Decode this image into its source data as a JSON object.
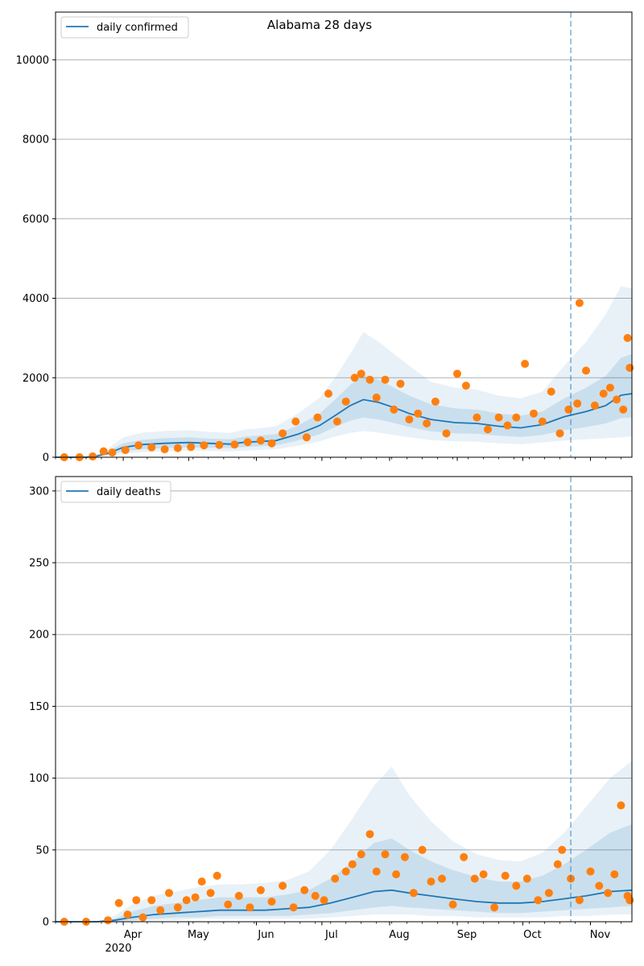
{
  "figure": {
    "title": "Alabama 28 days",
    "year_label": "2020",
    "month_labels": [
      "Apr",
      "May",
      "Jun",
      "Jul",
      "Aug",
      "Sep",
      "Oct",
      "Nov"
    ]
  },
  "colors": {
    "line": "#1f77b4",
    "points": "#ff7f0e",
    "band": "#1f77b4",
    "grid": "#b0b0b0",
    "forecast_marker": "#1f77b4"
  },
  "chart_data": [
    {
      "type": "line",
      "title": "Alabama 28 days",
      "legend": {
        "label": "daily confirmed",
        "placement": "top-left"
      },
      "xlim": [
        "2020-03-01",
        "2020-11-20"
      ],
      "ylim": [
        0,
        11200
      ],
      "yticks": [
        0,
        2000,
        4000,
        6000,
        8000,
        10000
      ],
      "grid": "horizontal",
      "forecast_start": "2020-10-23",
      "median": {
        "x": [
          "2020-03-01",
          "2020-03-15",
          "2020-03-20",
          "2020-03-25",
          "2020-04-01",
          "2020-04-10",
          "2020-04-20",
          "2020-05-01",
          "2020-05-10",
          "2020-05-20",
          "2020-05-27",
          "2020-06-01",
          "2020-06-10",
          "2020-06-20",
          "2020-06-30",
          "2020-07-07",
          "2020-07-14",
          "2020-07-20",
          "2020-07-27",
          "2020-08-03",
          "2020-08-10",
          "2020-08-20",
          "2020-08-31",
          "2020-09-10",
          "2020-09-20",
          "2020-09-30",
          "2020-10-10",
          "2020-10-20",
          "2020-10-30",
          "2020-11-08",
          "2020-11-15",
          "2020-11-20"
        ],
        "y": [
          0,
          0,
          30,
          100,
          250,
          320,
          350,
          370,
          350,
          330,
          380,
          390,
          420,
          580,
          800,
          1050,
          1300,
          1450,
          1380,
          1250,
          1100,
          950,
          870,
          850,
          780,
          740,
          820,
          1020,
          1150,
          1300,
          1560,
          1600
        ]
      },
      "band_inner": {
        "lower": [
          0,
          0,
          20,
          60,
          150,
          200,
          230,
          250,
          240,
          230,
          260,
          270,
          300,
          420,
          580,
          760,
          920,
          1000,
          950,
          860,
          760,
          650,
          600,
          590,
          540,
          510,
          560,
          680,
          760,
          850,
          980,
          1000
        ],
        "upper": [
          0,
          0,
          50,
          150,
          350,
          440,
          480,
          500,
          470,
          450,
          520,
          540,
          580,
          800,
          1100,
          1450,
          1820,
          2050,
          1950,
          1750,
          1550,
          1330,
          1230,
          1200,
          1100,
          1050,
          1150,
          1480,
          1750,
          2050,
          2500,
          2600
        ]
      },
      "band_outer": {
        "lower": [
          0,
          0,
          10,
          40,
          90,
          130,
          150,
          170,
          160,
          150,
          170,
          180,
          200,
          290,
          400,
          520,
          610,
          660,
          620,
          560,
          500,
          430,
          400,
          390,
          350,
          330,
          370,
          420,
          450,
          480,
          500,
          520
        ],
        "upper": [
          0,
          0,
          80,
          220,
          500,
          620,
          660,
          680,
          640,
          610,
          700,
          720,
          780,
          1100,
          1500,
          2000,
          2600,
          3150,
          2900,
          2600,
          2300,
          1900,
          1750,
          1700,
          1550,
          1480,
          1650,
          2300,
          2900,
          3600,
          4300,
          4250
        ]
      },
      "points": {
        "x": [
          "2020-03-05",
          "2020-03-12",
          "2020-03-18",
          "2020-03-23",
          "2020-03-27",
          "2020-04-02",
          "2020-04-08",
          "2020-04-14",
          "2020-04-20",
          "2020-04-26",
          "2020-05-02",
          "2020-05-08",
          "2020-05-15",
          "2020-05-22",
          "2020-05-28",
          "2020-06-03",
          "2020-06-08",
          "2020-06-13",
          "2020-06-19",
          "2020-06-24",
          "2020-06-29",
          "2020-07-04",
          "2020-07-08",
          "2020-07-12",
          "2020-07-16",
          "2020-07-19",
          "2020-07-23",
          "2020-07-26",
          "2020-07-30",
          "2020-08-03",
          "2020-08-06",
          "2020-08-10",
          "2020-08-14",
          "2020-08-18",
          "2020-08-22",
          "2020-08-27",
          "2020-09-01",
          "2020-09-05",
          "2020-09-10",
          "2020-09-15",
          "2020-09-20",
          "2020-09-24",
          "2020-09-28",
          "2020-10-02",
          "2020-10-06",
          "2020-10-10",
          "2020-10-14",
          "2020-10-18",
          "2020-10-22",
          "2020-10-26",
          "2020-10-27",
          "2020-10-30",
          "2020-11-03",
          "2020-11-07",
          "2020-11-10",
          "2020-11-13",
          "2020-11-16",
          "2020-11-18",
          "2020-11-19"
        ],
        "y": [
          0,
          0,
          20,
          150,
          120,
          180,
          300,
          250,
          200,
          230,
          260,
          300,
          310,
          320,
          380,
          420,
          350,
          600,
          900,
          500,
          1000,
          1600,
          900,
          1400,
          2000,
          2100,
          1950,
          1500,
          1950,
          1200,
          1850,
          950,
          1100,
          850,
          1400,
          600,
          2100,
          1800,
          1000,
          700,
          1000,
          800,
          1000,
          2350,
          1100,
          900,
          1650,
          600,
          1200,
          1350,
          3880,
          2180,
          1300,
          1600,
          1750,
          1450,
          1200,
          3000,
          2250
        ]
      }
    },
    {
      "type": "line",
      "legend": {
        "label": "daily deaths",
        "placement": "top-left"
      },
      "xlim": [
        "2020-03-01",
        "2020-11-20"
      ],
      "ylim": [
        0,
        310
      ],
      "yticks": [
        0,
        50,
        100,
        150,
        200,
        250,
        300
      ],
      "grid": "horizontal",
      "forecast_start": "2020-10-23",
      "median": {
        "x": [
          "2020-03-01",
          "2020-03-20",
          "2020-03-28",
          "2020-04-05",
          "2020-04-15",
          "2020-04-25",
          "2020-05-05",
          "2020-05-15",
          "2020-05-25",
          "2020-06-05",
          "2020-06-15",
          "2020-06-25",
          "2020-07-05",
          "2020-07-15",
          "2020-07-25",
          "2020-08-02",
          "2020-08-10",
          "2020-08-20",
          "2020-08-30",
          "2020-09-10",
          "2020-09-20",
          "2020-09-30",
          "2020-10-10",
          "2020-10-20",
          "2020-10-30",
          "2020-11-10",
          "2020-11-20"
        ],
        "y": [
          0,
          0,
          1,
          3,
          5,
          6,
          7,
          8,
          8,
          8,
          9,
          10,
          13,
          17,
          21,
          22,
          20,
          18,
          16,
          14,
          13,
          13,
          14,
          16,
          18,
          21,
          22
        ]
      },
      "band_inner": {
        "lower": [
          0,
          0,
          0,
          1,
          2,
          3,
          3,
          4,
          4,
          4,
          4,
          5,
          6,
          8,
          10,
          11,
          10,
          9,
          8,
          7,
          6,
          6,
          7,
          8,
          9,
          10,
          11
        ],
        "upper": [
          0,
          0,
          2,
          7,
          11,
          13,
          15,
          17,
          17,
          17,
          19,
          22,
          30,
          42,
          55,
          58,
          50,
          42,
          36,
          31,
          28,
          28,
          32,
          40,
          50,
          62,
          68
        ]
      },
      "band_outer": {
        "lower": [
          0,
          0,
          0,
          0,
          1,
          1,
          2,
          2,
          2,
          2,
          2,
          2,
          3,
          4,
          5,
          5,
          5,
          4,
          4,
          3,
          3,
          3,
          3,
          4,
          4,
          5,
          5
        ],
        "upper": [
          0,
          0,
          4,
          12,
          18,
          21,
          24,
          26,
          26,
          27,
          29,
          35,
          50,
          72,
          95,
          108,
          88,
          70,
          56,
          47,
          43,
          42,
          48,
          62,
          80,
          100,
          112
        ]
      },
      "points": {
        "x": [
          "2020-03-05",
          "2020-03-15",
          "2020-03-25",
          "2020-03-30",
          "2020-04-03",
          "2020-04-07",
          "2020-04-10",
          "2020-04-14",
          "2020-04-18",
          "2020-04-22",
          "2020-04-26",
          "2020-04-30",
          "2020-05-04",
          "2020-05-07",
          "2020-05-11",
          "2020-05-14",
          "2020-05-19",
          "2020-05-24",
          "2020-05-29",
          "2020-06-03",
          "2020-06-08",
          "2020-06-13",
          "2020-06-18",
          "2020-06-23",
          "2020-06-28",
          "2020-07-02",
          "2020-07-07",
          "2020-07-12",
          "2020-07-15",
          "2020-07-19",
          "2020-07-23",
          "2020-07-26",
          "2020-07-30",
          "2020-08-04",
          "2020-08-08",
          "2020-08-12",
          "2020-08-16",
          "2020-08-20",
          "2020-08-25",
          "2020-08-30",
          "2020-09-04",
          "2020-09-09",
          "2020-09-13",
          "2020-09-18",
          "2020-09-23",
          "2020-09-28",
          "2020-10-03",
          "2020-10-08",
          "2020-10-13",
          "2020-10-17",
          "2020-10-19",
          "2020-10-23",
          "2020-10-27",
          "2020-11-01",
          "2020-11-05",
          "2020-11-09",
          "2020-11-12",
          "2020-11-15",
          "2020-11-18",
          "2020-11-19"
        ],
        "y": [
          0,
          0,
          1,
          13,
          5,
          15,
          3,
          15,
          8,
          20,
          10,
          15,
          17,
          28,
          20,
          32,
          12,
          18,
          10,
          22,
          14,
          25,
          10,
          22,
          18,
          15,
          30,
          35,
          40,
          47,
          61,
          35,
          47,
          33,
          45,
          20,
          50,
          28,
          30,
          12,
          45,
          30,
          33,
          10,
          32,
          25,
          30,
          15,
          20,
          40,
          50,
          30,
          15,
          35,
          25,
          20,
          33,
          81,
          18,
          15
        ]
      }
    }
  ]
}
